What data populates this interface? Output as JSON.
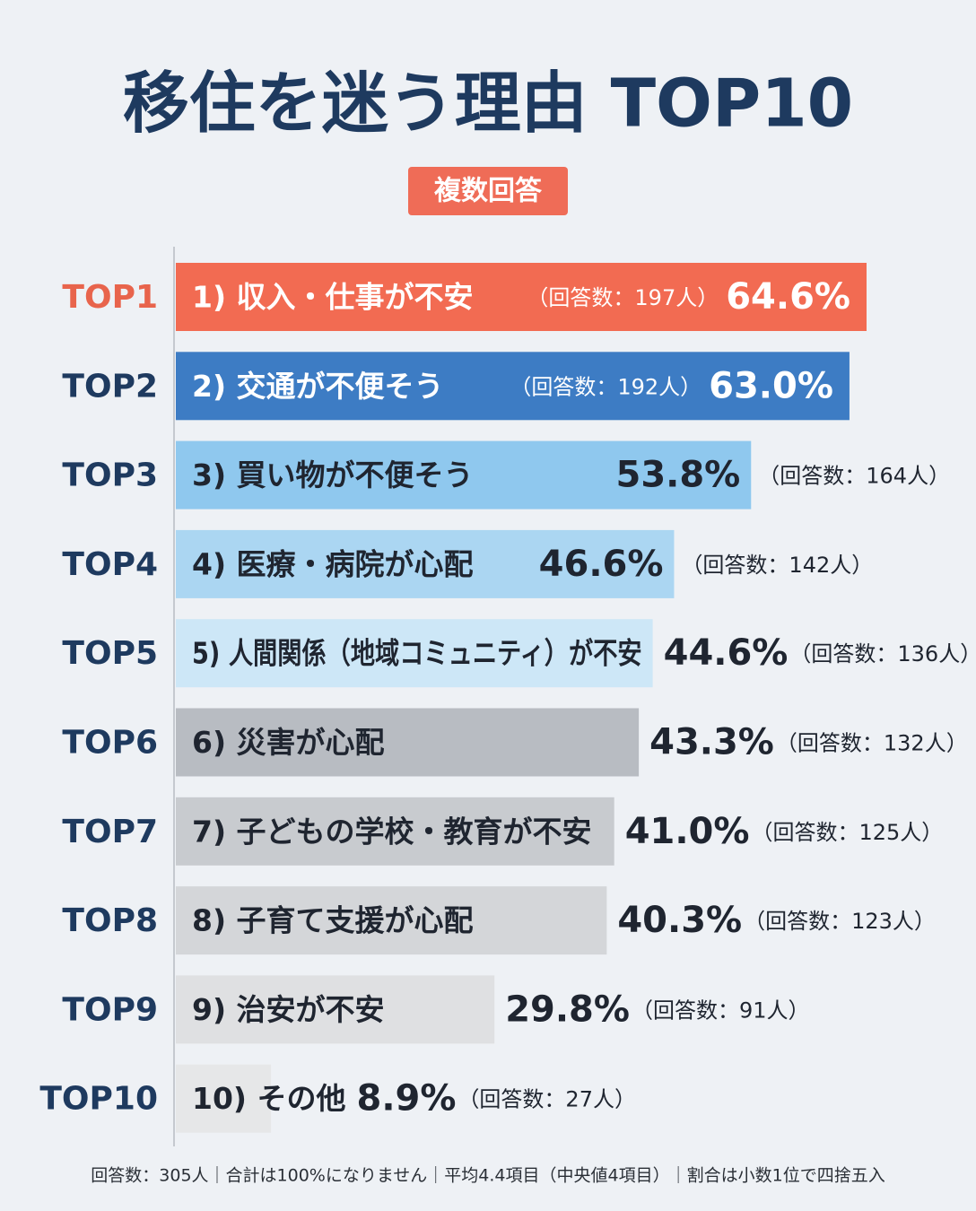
{
  "chart_data": {
    "type": "bar",
    "orientation": "horizontal",
    "title": "移住を迷う理由 TOP10",
    "badge": "複数回答",
    "ranks": [
      "TOP1",
      "TOP2",
      "TOP3",
      "TOP4",
      "TOP5",
      "TOP6",
      "TOP7",
      "TOP8",
      "TOP9",
      "TOP10"
    ],
    "categories": [
      "1) 収入・仕事が不安",
      "2) 交通が不便そう",
      "3) 買い物が不便そう",
      "4) 医療・病院が心配",
      "5) 人間関係（地域コミュニティ）が不安",
      "6) 災害が心配",
      "7) 子どもの学校・教育が不安",
      "8) 子育て支援が心配",
      "9) 治安が不安",
      "10) その他"
    ],
    "values": [
      64.6,
      63.0,
      53.8,
      46.6,
      44.6,
      43.3,
      41.0,
      40.3,
      29.8,
      8.9
    ],
    "value_labels": [
      "64.6%",
      "63.0%",
      "53.8%",
      "46.6%",
      "44.6%",
      "43.3%",
      "41.0%",
      "40.3%",
      "29.8%",
      "8.9%"
    ],
    "count_labels": [
      "（回答数：197人）",
      "（回答数：192人）",
      "（回答数：164人）",
      "（回答数：142人）",
      "（回答数：136人）",
      "（回答数：132人）",
      "（回答数：125人）",
      "（回答数：123人）",
      "（回答数：91人）",
      "（回答数：27人）"
    ],
    "colors": [
      "#f26b52",
      "#3d7cc4",
      "#8fc8ee",
      "#abd6f2",
      "#cde7f7",
      "#b8bcc2",
      "#c8cbcf",
      "#d4d6d9",
      "#dfe0e2",
      "#e6e7e8"
    ],
    "footnote": "回答数：305人｜合計は100%になりません｜平均4.4項目（中央値4項目）｜割合は小数1位で四捨五入"
  }
}
